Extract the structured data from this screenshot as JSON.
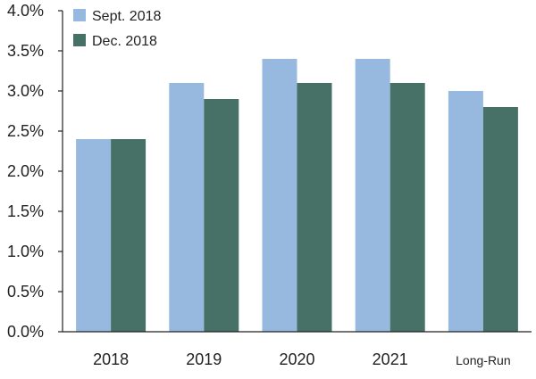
{
  "chart_data": {
    "type": "bar",
    "categories": [
      "2018",
      "2019",
      "2020",
      "2021",
      "Long-Run"
    ],
    "series": [
      {
        "name": "Sept. 2018",
        "values": [
          2.4,
          3.1,
          3.4,
          3.4,
          3.0
        ],
        "color": "#97b9df"
      },
      {
        "name": "Dec. 2018",
        "values": [
          2.4,
          2.9,
          3.1,
          3.1,
          2.8
        ],
        "color": "#477167"
      }
    ],
    "yticks": [
      "0.0%",
      "0.5%",
      "1.0%",
      "1.5%",
      "2.0%",
      "2.5%",
      "3.0%",
      "3.5%",
      "4.0%"
    ],
    "ylim": [
      0,
      4.0
    ],
    "title": "",
    "xlabel": "",
    "ylabel": "",
    "grid": false,
    "legend": "top-left"
  }
}
